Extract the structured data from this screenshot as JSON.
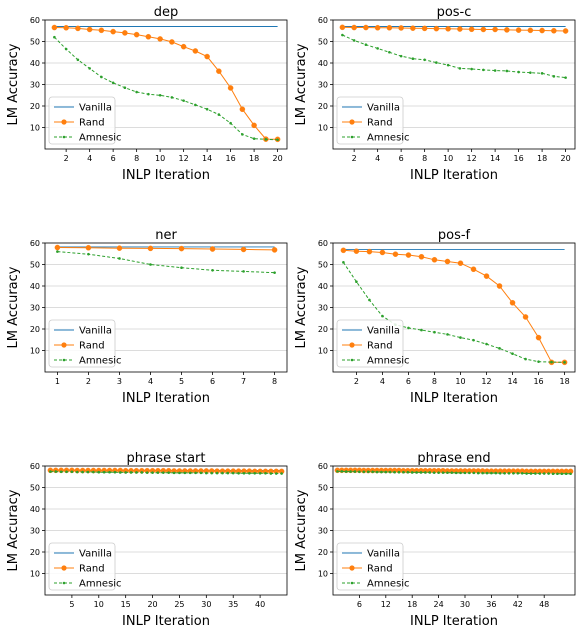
{
  "colors": {
    "vanilla": "#1f77b4",
    "rand": "#ff7f0e",
    "amnesic": "#2ca02c"
  },
  "chart_data": [
    {
      "type": "line",
      "title": "dep",
      "xlabel": "INLP Iteration",
      "ylabel": "LM Accuracy",
      "xlim": [
        0.2,
        20.8
      ],
      "ylim": [
        0,
        60
      ],
      "xticks": [
        2,
        4,
        6,
        8,
        10,
        12,
        14,
        16,
        18,
        20
      ],
      "yticks": [
        10,
        20,
        30,
        40,
        50,
        60
      ],
      "grid": "horizontal",
      "legend": "lower-left",
      "series": [
        {
          "name": "Vanilla",
          "x": [
            1,
            20
          ],
          "y": [
            57.0,
            57.0
          ]
        },
        {
          "name": "Rand",
          "x": [
            1,
            2,
            3,
            4,
            5,
            6,
            7,
            8,
            9,
            10,
            11,
            12,
            13,
            14,
            15,
            16,
            17,
            18,
            19,
            20
          ],
          "y": [
            56.5,
            56.4,
            56.1,
            55.6,
            55.2,
            54.6,
            54.0,
            53.2,
            52.2,
            51.2,
            49.8,
            47.6,
            45.6,
            43.0,
            36.2,
            28.4,
            18.5,
            11.0,
            4.6,
            4.5
          ]
        },
        {
          "name": "Amnesic",
          "x": [
            1,
            2,
            3,
            4,
            5,
            6,
            7,
            8,
            9,
            10,
            11,
            12,
            13,
            14,
            15,
            16,
            17,
            18,
            19,
            20
          ],
          "y": [
            52.0,
            46.5,
            41.5,
            37.5,
            33.5,
            30.8,
            28.5,
            26.5,
            25.5,
            25.0,
            24.0,
            22.5,
            20.5,
            18.5,
            16.0,
            12.0,
            6.8,
            4.8,
            4.5,
            4.3
          ]
        }
      ]
    },
    {
      "type": "line",
      "title": "pos-c",
      "xlabel": "INLP Iteration",
      "ylabel": "LM Accuracy",
      "xlim": [
        0.2,
        20.8
      ],
      "ylim": [
        0,
        60
      ],
      "xticks": [
        2,
        4,
        6,
        8,
        10,
        12,
        14,
        16,
        18,
        20
      ],
      "yticks": [
        10,
        20,
        30,
        40,
        50,
        60
      ],
      "grid": "horizontal",
      "legend": "lower-left",
      "series": [
        {
          "name": "Vanilla",
          "x": [
            1,
            20
          ],
          "y": [
            57.0,
            57.0
          ]
        },
        {
          "name": "Rand",
          "x": [
            1,
            2,
            3,
            4,
            5,
            6,
            7,
            8,
            9,
            10,
            11,
            12,
            13,
            14,
            15,
            16,
            17,
            18,
            19,
            20
          ],
          "y": [
            56.6,
            56.5,
            56.5,
            56.4,
            56.4,
            56.3,
            56.2,
            56.1,
            56.0,
            55.9,
            55.8,
            55.7,
            55.6,
            55.6,
            55.4,
            55.3,
            55.2,
            55.1,
            55.0,
            54.9
          ]
        },
        {
          "name": "Amnesic",
          "x": [
            1,
            2,
            3,
            4,
            5,
            6,
            7,
            8,
            9,
            10,
            11,
            12,
            13,
            14,
            15,
            16,
            17,
            18,
            19,
            20
          ],
          "y": [
            53.0,
            50.5,
            48.5,
            46.8,
            45.0,
            43.2,
            42.0,
            41.5,
            40.2,
            39.0,
            37.5,
            37.2,
            36.8,
            36.5,
            36.3,
            35.8,
            35.5,
            35.2,
            33.8,
            33.2
          ]
        }
      ]
    },
    {
      "type": "line",
      "title": "ner",
      "xlabel": "INLP Iteration",
      "ylabel": "LM Accuracy",
      "xlim": [
        0.6,
        8.4
      ],
      "ylim": [
        0,
        60
      ],
      "xticks": [
        1,
        2,
        3,
        4,
        5,
        6,
        7,
        8
      ],
      "yticks": [
        10,
        20,
        30,
        40,
        50,
        60
      ],
      "grid": "horizontal",
      "legend": "lower-left",
      "series": [
        {
          "name": "Vanilla",
          "x": [
            1,
            8
          ],
          "y": [
            58.2,
            58.2
          ]
        },
        {
          "name": "Rand",
          "x": [
            1,
            2,
            3,
            4,
            5,
            6,
            7,
            8
          ],
          "y": [
            57.9,
            57.8,
            57.6,
            57.5,
            57.4,
            57.2,
            57.0,
            56.8
          ]
        },
        {
          "name": "Amnesic",
          "x": [
            1,
            2,
            3,
            4,
            5,
            6,
            7,
            8
          ],
          "y": [
            56.0,
            54.8,
            52.8,
            50.0,
            48.5,
            47.3,
            46.8,
            46.2
          ]
        }
      ]
    },
    {
      "type": "line",
      "title": "pos-f",
      "xlabel": "INLP Iteration",
      "ylabel": "LM Accuracy",
      "xlim": [
        0.2,
        18.8
      ],
      "ylim": [
        0,
        60
      ],
      "xticks": [
        2,
        4,
        6,
        8,
        10,
        12,
        14,
        16,
        18
      ],
      "yticks": [
        10,
        20,
        30,
        40,
        50,
        60
      ],
      "grid": "horizontal",
      "legend": "lower-left",
      "series": [
        {
          "name": "Vanilla",
          "x": [
            1,
            18
          ],
          "y": [
            57.0,
            57.0
          ]
        },
        {
          "name": "Rand",
          "x": [
            1,
            2,
            3,
            4,
            5,
            6,
            7,
            8,
            9,
            10,
            11,
            12,
            13,
            14,
            15,
            16,
            17,
            18
          ],
          "y": [
            56.6,
            56.2,
            56.0,
            55.6,
            54.8,
            54.4,
            53.6,
            52.2,
            51.4,
            50.6,
            47.8,
            44.6,
            40.0,
            32.2,
            25.6,
            16.0,
            4.5,
            4.5
          ]
        },
        {
          "name": "Amnesic",
          "x": [
            1,
            2,
            3,
            4,
            5,
            6,
            7,
            8,
            9,
            10,
            11,
            12,
            13,
            14,
            15,
            16,
            17,
            18
          ],
          "y": [
            51.0,
            42.0,
            33.5,
            26.0,
            22.0,
            20.5,
            19.5,
            18.5,
            17.5,
            16.0,
            14.8,
            13.0,
            11.0,
            8.5,
            6.0,
            4.8,
            4.6,
            4.5
          ]
        }
      ]
    },
    {
      "type": "line",
      "title": "phrase start",
      "xlabel": "INLP Iteration",
      "ylabel": "LM Accuracy",
      "xlim": [
        0,
        45
      ],
      "ylim": [
        0,
        60
      ],
      "xticks": [
        5,
        10,
        15,
        20,
        25,
        30,
        35,
        40
      ],
      "yticks": [
        10,
        20,
        30,
        40,
        50,
        60
      ],
      "grid": "horizontal",
      "legend": "lower-left",
      "series": [
        {
          "name": "Vanilla",
          "x": [
            1,
            44
          ],
          "y": [
            57.9,
            57.9
          ]
        },
        {
          "name": "Rand",
          "x": [
            1,
            2,
            3,
            4,
            5,
            6,
            7,
            8,
            9,
            10,
            11,
            12,
            13,
            14,
            15,
            16,
            17,
            18,
            19,
            20,
            21,
            22,
            23,
            24,
            25,
            26,
            27,
            28,
            29,
            30,
            31,
            32,
            33,
            34,
            35,
            36,
            37,
            38,
            39,
            40,
            41,
            42,
            43,
            44
          ],
          "y": [
            58.0,
            58.0,
            58.0,
            58.0,
            58.0,
            57.9,
            57.9,
            57.9,
            57.9,
            57.9,
            57.9,
            57.9,
            57.9,
            57.9,
            57.8,
            57.8,
            57.8,
            57.8,
            57.8,
            57.8,
            57.8,
            57.8,
            57.8,
            57.7,
            57.7,
            57.7,
            57.7,
            57.7,
            57.7,
            57.7,
            57.7,
            57.6,
            57.6,
            57.6,
            57.6,
            57.6,
            57.6,
            57.6,
            57.5,
            57.5,
            57.5,
            57.5,
            57.5,
            57.5
          ]
        },
        {
          "name": "Amnesic",
          "x": [
            1,
            2,
            3,
            4,
            5,
            6,
            7,
            8,
            9,
            10,
            11,
            12,
            13,
            14,
            15,
            16,
            17,
            18,
            19,
            20,
            21,
            22,
            23,
            24,
            25,
            26,
            27,
            28,
            29,
            30,
            31,
            32,
            33,
            34,
            35,
            36,
            37,
            38,
            39,
            40,
            41,
            42,
            43,
            44
          ],
          "y": [
            57.4,
            57.4,
            57.3,
            57.3,
            57.3,
            57.2,
            57.2,
            57.2,
            57.2,
            57.1,
            57.1,
            57.1,
            57.1,
            57.0,
            57.0,
            57.0,
            57.0,
            57.0,
            56.9,
            56.9,
            56.9,
            56.9,
            56.9,
            56.8,
            56.8,
            56.8,
            56.8,
            56.8,
            56.8,
            56.7,
            56.7,
            56.7,
            56.7,
            56.7,
            56.7,
            56.6,
            56.6,
            56.6,
            56.6,
            56.6,
            56.6,
            56.5,
            56.5,
            56.5
          ]
        }
      ]
    },
    {
      "type": "line",
      "title": "phrase end",
      "xlabel": "INLP Iteration",
      "ylabel": "LM Accuracy",
      "xlim": [
        0,
        55
      ],
      "ylim": [
        0,
        60
      ],
      "xticks": [
        6,
        12,
        18,
        24,
        30,
        36,
        42,
        48
      ],
      "yticks": [
        10,
        20,
        30,
        40,
        50,
        60
      ],
      "grid": "horizontal",
      "legend": "lower-left",
      "series": [
        {
          "name": "Vanilla",
          "x": [
            1,
            54
          ],
          "y": [
            57.9,
            57.9
          ]
        },
        {
          "name": "Rand",
          "x": [
            1,
            2,
            3,
            4,
            5,
            6,
            7,
            8,
            9,
            10,
            11,
            12,
            13,
            14,
            15,
            16,
            17,
            18,
            19,
            20,
            21,
            22,
            23,
            24,
            25,
            26,
            27,
            28,
            29,
            30,
            31,
            32,
            33,
            34,
            35,
            36,
            37,
            38,
            39,
            40,
            41,
            42,
            43,
            44,
            45,
            46,
            47,
            48,
            49,
            50,
            51,
            52,
            53,
            54
          ],
          "y": [
            58.0,
            58.0,
            58.0,
            58.0,
            58.0,
            58.0,
            57.9,
            57.9,
            57.9,
            57.9,
            57.9,
            57.9,
            57.9,
            57.9,
            57.9,
            57.8,
            57.8,
            57.8,
            57.8,
            57.8,
            57.8,
            57.8,
            57.8,
            57.8,
            57.8,
            57.7,
            57.7,
            57.7,
            57.7,
            57.7,
            57.7,
            57.7,
            57.7,
            57.7,
            57.6,
            57.6,
            57.6,
            57.6,
            57.6,
            57.6,
            57.6,
            57.6,
            57.6,
            57.5,
            57.5,
            57.5,
            57.5,
            57.5,
            57.5,
            57.5,
            57.5,
            57.5,
            57.5,
            57.5
          ]
        },
        {
          "name": "Amnesic",
          "x": [
            1,
            2,
            3,
            4,
            5,
            6,
            7,
            8,
            9,
            10,
            11,
            12,
            13,
            14,
            15,
            16,
            17,
            18,
            19,
            20,
            21,
            22,
            23,
            24,
            25,
            26,
            27,
            28,
            29,
            30,
            31,
            32,
            33,
            34,
            35,
            36,
            37,
            38,
            39,
            40,
            41,
            42,
            43,
            44,
            45,
            46,
            47,
            48,
            49,
            50,
            51,
            52,
            53,
            54
          ],
          "y": [
            57.5,
            57.5,
            57.4,
            57.4,
            57.4,
            57.3,
            57.3,
            57.3,
            57.3,
            57.2,
            57.2,
            57.2,
            57.2,
            57.1,
            57.1,
            57.1,
            57.1,
            57.0,
            57.0,
            57.0,
            57.0,
            57.0,
            56.9,
            56.9,
            56.9,
            56.9,
            56.9,
            56.8,
            56.8,
            56.8,
            56.8,
            56.8,
            56.7,
            56.7,
            56.7,
            56.7,
            56.7,
            56.6,
            56.6,
            56.6,
            56.6,
            56.6,
            56.6,
            56.5,
            56.5,
            56.5,
            56.5,
            56.5,
            56.5,
            56.4,
            56.4,
            56.4,
            56.4,
            56.4
          ]
        }
      ]
    }
  ]
}
